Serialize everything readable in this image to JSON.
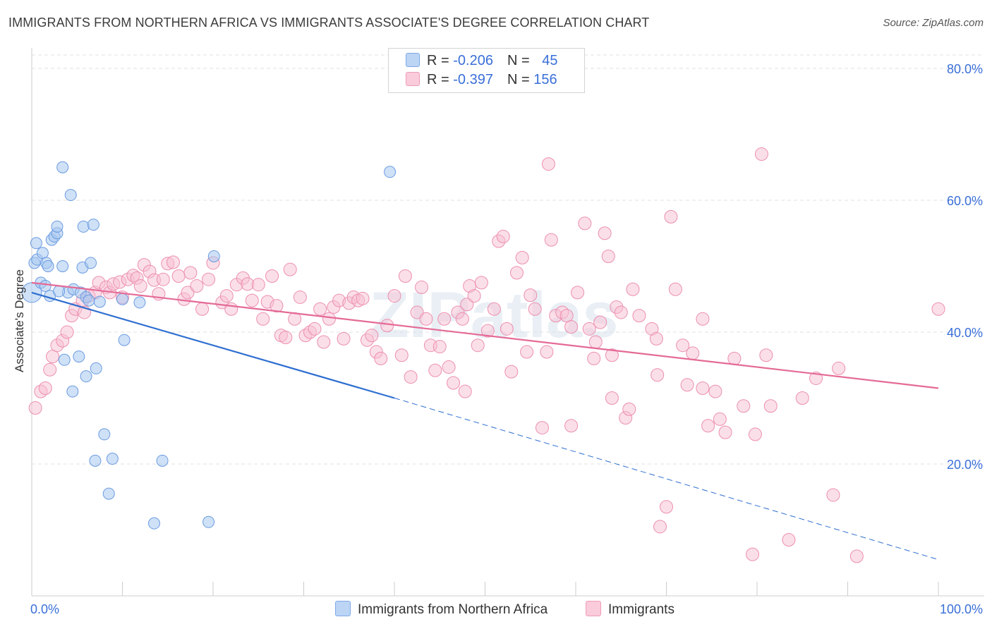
{
  "title": "IMMIGRANTS FROM NORTHERN AFRICA VS IMMIGRANTS ASSOCIATE'S DEGREE CORRELATION CHART",
  "source": "Source: ZipAtlas.com",
  "legend": {
    "rows": [
      {
        "r_label": "R = ",
        "r_value": "-0.206",
        "n_label": "N = ",
        "n_value": "45"
      },
      {
        "r_label": "R = ",
        "r_value": "-0.397",
        "n_label": "N = ",
        "n_value": "156"
      }
    ]
  },
  "bottom_legend": [
    "Immigrants from Northern Africa",
    "Immigrants"
  ],
  "watermark": "ZIPatlas",
  "colors": {
    "blue_fill": "#a8c8f0",
    "blue_stroke": "#6b9be0",
    "blue_line": "#2f6fd0",
    "pink_fill": "#f7bfd2",
    "pink_stroke": "#ec8fb0",
    "pink_line": "#e46a96",
    "axis_text": "#3a6fd8",
    "grid": "#e2e2e2"
  },
  "chart_data": {
    "type": "scatter",
    "title": "IMMIGRANTS FROM NORTHERN AFRICA VS IMMIGRANTS ASSOCIATE'S DEGREE CORRELATION CHART",
    "xlabel": "",
    "ylabel": "Associate's Degree",
    "xlim": [
      0,
      100
    ],
    "ylim": [
      0,
      85
    ],
    "x_tick_labels": [
      "0.0%",
      "100.0%"
    ],
    "y_ticks": [
      20,
      40,
      60,
      80
    ],
    "y_tick_labels": [
      "20.0%",
      "40.0%",
      "60.0%",
      "80.0%"
    ],
    "series": [
      {
        "name": "Immigrants from Northern Africa",
        "color": "blue",
        "R": -0.206,
        "N": 45,
        "trend": {
          "x0": 0,
          "y0": 46.0,
          "x1": 40,
          "y1": 30.0,
          "dash_to_x": 100,
          "dash_to_y": 5.5
        },
        "points": [
          [
            0.0,
            46.0
          ],
          [
            0.5,
            53.5
          ],
          [
            0.3,
            50.5
          ],
          [
            0.6,
            51.0
          ],
          [
            1.2,
            52.0
          ],
          [
            1.6,
            50.5
          ],
          [
            1.0,
            47.5
          ],
          [
            1.5,
            47.0
          ],
          [
            2.2,
            54.0
          ],
          [
            2.5,
            54.5
          ],
          [
            2.8,
            55.0
          ],
          [
            2.8,
            56.0
          ],
          [
            3.4,
            50.0
          ],
          [
            3.4,
            65.0
          ],
          [
            4.3,
            60.8
          ],
          [
            4.0,
            46.0
          ],
          [
            4.6,
            46.5
          ],
          [
            5.4,
            46.0
          ],
          [
            5.2,
            36.3
          ],
          [
            3.6,
            35.8
          ],
          [
            4.5,
            31.0
          ],
          [
            5.6,
            49.8
          ],
          [
            5.7,
            56.0
          ],
          [
            6.5,
            50.5
          ],
          [
            6.0,
            45.3
          ],
          [
            6.3,
            44.8
          ],
          [
            6.8,
            56.3
          ],
          [
            7.1,
            34.5
          ],
          [
            6.0,
            33.3
          ],
          [
            8.0,
            24.5
          ],
          [
            7.0,
            20.5
          ],
          [
            8.9,
            20.8
          ],
          [
            8.5,
            15.5
          ],
          [
            10.0,
            45.0
          ],
          [
            10.2,
            38.8
          ],
          [
            11.9,
            44.5
          ],
          [
            13.5,
            11.0
          ],
          [
            14.4,
            20.5
          ],
          [
            19.5,
            11.2
          ],
          [
            20.1,
            51.5
          ],
          [
            39.5,
            64.3
          ],
          [
            2.0,
            45.5
          ],
          [
            3.0,
            46.2
          ],
          [
            1.8,
            50.0
          ],
          [
            7.5,
            44.6
          ]
        ]
      },
      {
        "name": "Immigrants",
        "color": "pink",
        "R": -0.397,
        "N": 156,
        "trend": {
          "x0": 0,
          "y0": 47.5,
          "x1": 100,
          "y1": 31.5
        },
        "points": [
          [
            0.4,
            28.5
          ],
          [
            1.0,
            31.0
          ],
          [
            1.5,
            31.5
          ],
          [
            2.0,
            34.3
          ],
          [
            2.3,
            36.3
          ],
          [
            2.8,
            38.0
          ],
          [
            3.4,
            38.7
          ],
          [
            3.9,
            40.0
          ],
          [
            4.4,
            42.5
          ],
          [
            4.8,
            43.5
          ],
          [
            5.6,
            44.8
          ],
          [
            5.8,
            43.0
          ],
          [
            6.3,
            45.5
          ],
          [
            7.0,
            46.0
          ],
          [
            7.4,
            47.5
          ],
          [
            8.2,
            46.8
          ],
          [
            8.6,
            46.0
          ],
          [
            9.0,
            47.3
          ],
          [
            9.7,
            47.6
          ],
          [
            10.0,
            45.3
          ],
          [
            10.6,
            48.0
          ],
          [
            11.2,
            48.6
          ],
          [
            11.6,
            48.2
          ],
          [
            12.0,
            47.0
          ],
          [
            12.4,
            50.2
          ],
          [
            13.0,
            49.2
          ],
          [
            13.5,
            47.9
          ],
          [
            14.0,
            45.8
          ],
          [
            14.5,
            48.0
          ],
          [
            15.0,
            50.4
          ],
          [
            15.6,
            50.6
          ],
          [
            16.2,
            48.5
          ],
          [
            16.8,
            45.0
          ],
          [
            17.5,
            49.0
          ],
          [
            17.2,
            46.0
          ],
          [
            18.2,
            47.0
          ],
          [
            18.8,
            43.5
          ],
          [
            19.5,
            48.0
          ],
          [
            20.0,
            50.5
          ],
          [
            21.0,
            44.5
          ],
          [
            21.5,
            45.5
          ],
          [
            22.0,
            43.5
          ],
          [
            22.6,
            47.2
          ],
          [
            23.3,
            48.2
          ],
          [
            23.8,
            47.3
          ],
          [
            24.3,
            44.8
          ],
          [
            25.0,
            47.2
          ],
          [
            25.5,
            42.0
          ],
          [
            26.0,
            44.6
          ],
          [
            26.5,
            48.5
          ],
          [
            27.0,
            44.0
          ],
          [
            27.5,
            39.5
          ],
          [
            28.0,
            39.2
          ],
          [
            28.5,
            49.5
          ],
          [
            29.0,
            42.0
          ],
          [
            29.6,
            45.3
          ],
          [
            30.2,
            39.5
          ],
          [
            30.7,
            40.0
          ],
          [
            31.2,
            40.5
          ],
          [
            31.8,
            43.5
          ],
          [
            32.2,
            38.5
          ],
          [
            32.8,
            42.0
          ],
          [
            33.3,
            43.8
          ],
          [
            33.9,
            44.8
          ],
          [
            34.4,
            39.0
          ],
          [
            35.0,
            44.4
          ],
          [
            35.5,
            45.3
          ],
          [
            36.0,
            44.8
          ],
          [
            36.5,
            45.1
          ],
          [
            37.0,
            38.8
          ],
          [
            37.5,
            39.5
          ],
          [
            38.0,
            37.0
          ],
          [
            38.5,
            36.0
          ],
          [
            39.2,
            41.0
          ],
          [
            40.0,
            45.5
          ],
          [
            40.8,
            36.5
          ],
          [
            41.2,
            48.5
          ],
          [
            41.8,
            33.2
          ],
          [
            42.5,
            43.0
          ],
          [
            43.0,
            46.8
          ],
          [
            43.5,
            42.0
          ],
          [
            44.0,
            38.0
          ],
          [
            44.5,
            34.2
          ],
          [
            45.0,
            37.8
          ],
          [
            45.5,
            42.0
          ],
          [
            46.0,
            34.7
          ],
          [
            46.5,
            32.3
          ],
          [
            47.0,
            43.0
          ],
          [
            47.5,
            42.0
          ],
          [
            48.0,
            44.2
          ],
          [
            48.3,
            47.0
          ],
          [
            48.8,
            45.5
          ],
          [
            49.2,
            38.0
          ],
          [
            49.6,
            47.5
          ],
          [
            50.3,
            40.2
          ],
          [
            51.0,
            43.5
          ],
          [
            51.5,
            53.8
          ],
          [
            52.0,
            54.5
          ],
          [
            52.4,
            40.5
          ],
          [
            52.9,
            34.0
          ],
          [
            53.5,
            49.0
          ],
          [
            54.1,
            51.3
          ],
          [
            54.6,
            37.0
          ],
          [
            55.0,
            45.6
          ],
          [
            55.5,
            43.5
          ],
          [
            56.3,
            25.5
          ],
          [
            56.8,
            37.0
          ],
          [
            57.3,
            54.0
          ],
          [
            57.8,
            42.5
          ],
          [
            58.5,
            43.0
          ],
          [
            59.0,
            42.5
          ],
          [
            59.5,
            40.8
          ],
          [
            60.2,
            46.0
          ],
          [
            61.0,
            56.5
          ],
          [
            61.5,
            40.5
          ],
          [
            62.2,
            38.5
          ],
          [
            62.7,
            41.5
          ],
          [
            63.2,
            55.0
          ],
          [
            63.6,
            51.5
          ],
          [
            64.0,
            36.5
          ],
          [
            64.5,
            43.8
          ],
          [
            65.0,
            43.0
          ],
          [
            65.5,
            27.0
          ],
          [
            65.9,
            28.3
          ],
          [
            66.3,
            46.5
          ],
          [
            67.0,
            42.5
          ],
          [
            68.4,
            40.5
          ],
          [
            68.9,
            39.0
          ],
          [
            69.3,
            10.5
          ],
          [
            70.0,
            13.5
          ],
          [
            70.5,
            57.5
          ],
          [
            71.0,
            46.5
          ],
          [
            71.8,
            38.0
          ],
          [
            72.3,
            32.0
          ],
          [
            72.9,
            36.8
          ],
          [
            74.0,
            31.5
          ],
          [
            74.6,
            25.8
          ],
          [
            75.4,
            31.0
          ],
          [
            75.9,
            26.8
          ],
          [
            76.5,
            24.8
          ],
          [
            77.5,
            36.0
          ],
          [
            78.5,
            28.8
          ],
          [
            79.5,
            6.3
          ],
          [
            79.8,
            24.5
          ],
          [
            80.5,
            67.0
          ],
          [
            81.5,
            28.8
          ],
          [
            83.5,
            8.5
          ],
          [
            85.0,
            30.0
          ],
          [
            88.4,
            15.3
          ],
          [
            89.0,
            34.5
          ],
          [
            91.0,
            6.0
          ],
          [
            100.0,
            43.5
          ],
          [
            57.0,
            65.5
          ],
          [
            59.5,
            25.8
          ],
          [
            64.0,
            30.0
          ],
          [
            69.0,
            33.5
          ],
          [
            74.0,
            42.0
          ],
          [
            81.0,
            36.5
          ],
          [
            86.5,
            33.0
          ],
          [
            47.8,
            31.0
          ],
          [
            62.0,
            36.0
          ]
        ]
      }
    ]
  }
}
